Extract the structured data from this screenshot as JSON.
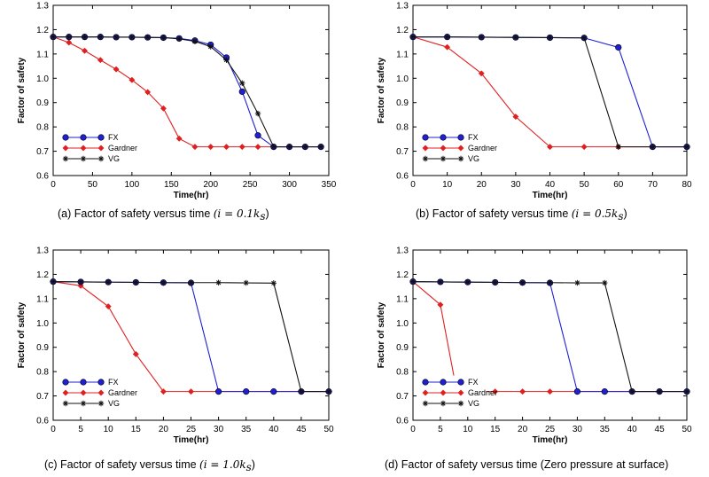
{
  "chart_data": [
    {
      "type": "line",
      "caption": "(a)  Factor of safety versus time",
      "caption_math": "(i = 0.1k",
      "caption_sub": "s",
      "caption_close": ")",
      "xlabel": "Time(hr)",
      "ylabel": "Factor of safety",
      "xlim": [
        0,
        350
      ],
      "ylim": [
        0.6,
        1.3
      ],
      "xticks": [
        0,
        50,
        100,
        150,
        200,
        250,
        300,
        350
      ],
      "yticks": [
        0.6,
        0.7,
        0.8,
        0.9,
        1.0,
        1.1,
        1.2,
        1.3
      ],
      "grid": false,
      "legend": "lower-left",
      "series": [
        {
          "name": "FX",
          "color": "#1f1fd6",
          "marker": "circle",
          "x": [
            0,
            20,
            40,
            60,
            80,
            100,
            120,
            140,
            160,
            180,
            200,
            220,
            240,
            260,
            280,
            300,
            320,
            340
          ],
          "y": [
            1.17,
            1.17,
            1.17,
            1.17,
            1.169,
            1.169,
            1.168,
            1.167,
            1.164,
            1.155,
            1.138,
            1.085,
            0.945,
            0.765,
            0.718,
            0.718,
            0.718,
            0.718
          ]
        },
        {
          "name": "Gardner",
          "color": "#e02020",
          "marker": "diamond",
          "x": [
            0,
            20,
            40,
            60,
            80,
            100,
            120,
            140,
            160,
            180,
            200,
            220,
            240,
            260,
            280,
            300,
            320,
            340
          ],
          "y": [
            1.17,
            1.147,
            1.113,
            1.075,
            1.037,
            0.993,
            0.943,
            0.876,
            0.752,
            0.718,
            0.718,
            0.718,
            0.718,
            0.718,
            0.718,
            0.718,
            0.718,
            0.718
          ]
        },
        {
          "name": "VG",
          "color": "#111111",
          "marker": "asterisk",
          "x": [
            0,
            20,
            40,
            60,
            80,
            100,
            120,
            140,
            160,
            180,
            200,
            220,
            240,
            260,
            280,
            300,
            320,
            340
          ],
          "y": [
            1.17,
            1.17,
            1.17,
            1.17,
            1.169,
            1.169,
            1.168,
            1.167,
            1.162,
            1.152,
            1.13,
            1.075,
            0.98,
            0.855,
            0.718,
            0.718,
            0.718,
            0.718
          ]
        }
      ]
    },
    {
      "type": "line",
      "caption": "(b)  Factor of safety versus time",
      "caption_math": "(i = 0.5k",
      "caption_sub": "s",
      "caption_close": ")",
      "xlabel": "Time(hr)",
      "ylabel": "Factor of safety",
      "xlim": [
        0,
        80
      ],
      "ylim": [
        0.6,
        1.3
      ],
      "xticks": [
        0,
        10,
        20,
        30,
        40,
        50,
        60,
        70,
        80
      ],
      "yticks": [
        0.6,
        0.7,
        0.8,
        0.9,
        1.0,
        1.1,
        1.2,
        1.3
      ],
      "grid": false,
      "legend": "lower-left",
      "series": [
        {
          "name": "FX",
          "color": "#1f1fd6",
          "marker": "circle",
          "x": [
            0,
            10,
            20,
            30,
            40,
            50,
            60,
            70,
            80
          ],
          "y": [
            1.17,
            1.17,
            1.169,
            1.168,
            1.167,
            1.166,
            1.127,
            0.718,
            0.718
          ]
        },
        {
          "name": "Gardner",
          "color": "#e02020",
          "marker": "diamond",
          "x": [
            0,
            10,
            20,
            30,
            40,
            50,
            60,
            70,
            80
          ],
          "y": [
            1.17,
            1.128,
            1.02,
            0.842,
            0.718,
            0.718,
            0.718,
            0.718,
            0.718
          ]
        },
        {
          "name": "VG",
          "color": "#111111",
          "marker": "asterisk",
          "x": [
            0,
            10,
            20,
            30,
            40,
            50,
            60,
            70,
            80
          ],
          "y": [
            1.17,
            1.17,
            1.169,
            1.168,
            1.167,
            1.166,
            0.718,
            0.718,
            0.718
          ]
        }
      ]
    },
    {
      "type": "line",
      "caption": "(c) Factor of safety versus time",
      "caption_math": "(i = 1.0k",
      "caption_sub": "s",
      "caption_close": ")",
      "xlabel": "Time(hr)",
      "ylabel": "Factor of safety",
      "xlim": [
        0,
        50
      ],
      "ylim": [
        0.6,
        1.3
      ],
      "xticks": [
        0,
        5,
        10,
        15,
        20,
        25,
        30,
        35,
        40,
        45,
        50
      ],
      "yticks": [
        0.6,
        0.7,
        0.8,
        0.9,
        1.0,
        1.1,
        1.2,
        1.3
      ],
      "grid": false,
      "legend": "lower-left",
      "series": [
        {
          "name": "FX",
          "color": "#1f1fd6",
          "marker": "circle",
          "x": [
            0,
            5,
            10,
            15,
            20,
            25,
            30,
            35,
            40,
            45,
            50
          ],
          "y": [
            1.17,
            1.169,
            1.168,
            1.167,
            1.166,
            1.165,
            0.718,
            0.718,
            0.718,
            0.718,
            0.718
          ]
        },
        {
          "name": "Gardner",
          "color": "#e02020",
          "marker": "diamond",
          "x": [
            0,
            5,
            10,
            15,
            20,
            25,
            30,
            35,
            40,
            45,
            50
          ],
          "y": [
            1.17,
            1.153,
            1.068,
            0.872,
            0.718,
            0.718,
            0.718,
            0.718,
            0.718,
            0.718,
            0.718
          ]
        },
        {
          "name": "VG",
          "color": "#111111",
          "marker": "asterisk",
          "x": [
            0,
            5,
            10,
            15,
            20,
            25,
            30,
            35,
            40,
            45,
            50
          ],
          "y": [
            1.17,
            1.169,
            1.168,
            1.167,
            1.166,
            1.166,
            1.166,
            1.165,
            1.164,
            0.718,
            0.718
          ]
        }
      ]
    },
    {
      "type": "line",
      "caption": "(d) Factor of safety versus time (Zero pressure at surface)",
      "caption_math": "",
      "caption_sub": "",
      "caption_close": "",
      "xlabel": "Time(hr)",
      "ylabel": "Factor of safety",
      "xlim": [
        0,
        50
      ],
      "ylim": [
        0.6,
        1.3
      ],
      "xticks": [
        0,
        5,
        10,
        15,
        20,
        25,
        30,
        35,
        40,
        45,
        50
      ],
      "yticks": [
        0.6,
        0.7,
        0.8,
        0.9,
        1.0,
        1.1,
        1.2,
        1.3
      ],
      "grid": false,
      "legend": "lower-left",
      "series": [
        {
          "name": "FX",
          "color": "#1f1fd6",
          "marker": "circle",
          "x": [
            0,
            5,
            10,
            15,
            20,
            25,
            30,
            35,
            40,
            45,
            50
          ],
          "y": [
            1.17,
            1.169,
            1.168,
            1.167,
            1.166,
            1.165,
            0.718,
            0.718,
            0.718,
            0.718,
            0.718
          ]
        },
        {
          "name": "Gardner",
          "color": "#e02020",
          "marker": "diamond",
          "x": [
            0,
            5,
            8,
            10,
            15,
            20,
            25,
            30,
            35,
            40,
            45,
            50
          ],
          "y": [
            1.17,
            1.075,
            0.718,
            0.718,
            0.718,
            0.718,
            0.718,
            0.718,
            0.718,
            0.718,
            0.718,
            0.718
          ]
        },
        {
          "name": "VG",
          "color": "#111111",
          "marker": "asterisk",
          "x": [
            0,
            5,
            10,
            15,
            20,
            25,
            30,
            35,
            40,
            45,
            50
          ],
          "y": [
            1.17,
            1.169,
            1.168,
            1.167,
            1.166,
            1.166,
            1.165,
            1.165,
            0.718,
            0.718,
            0.718
          ]
        }
      ]
    }
  ]
}
